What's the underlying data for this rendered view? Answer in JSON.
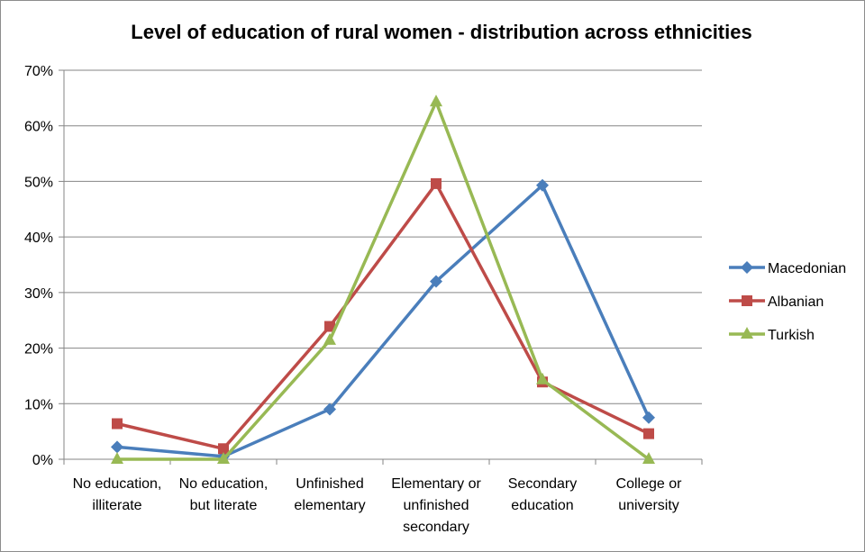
{
  "chart_data": {
    "type": "line",
    "title": "Level of education of rural women - distribution across ethnicities",
    "xlabel": "",
    "ylabel": "",
    "categories": [
      [
        "No education,",
        "illiterate"
      ],
      [
        "No education,",
        "but literate"
      ],
      [
        "Unfinished",
        "elementary"
      ],
      [
        "Elementary or",
        "unfinished",
        "secondary"
      ],
      [
        "Secondary",
        "education"
      ],
      [
        "College or",
        "university"
      ]
    ],
    "ylim": [
      0,
      70
    ],
    "yticks": [
      "0%",
      "10%",
      "20%",
      "30%",
      "40%",
      "50%",
      "60%",
      "70%"
    ],
    "grid": true,
    "legend_position": "right",
    "series": [
      {
        "name": "Macedonian",
        "color": "#4a7ebb",
        "marker": "diamond",
        "values": [
          2.2,
          0.5,
          9.0,
          32.0,
          49.3,
          7.5
        ]
      },
      {
        "name": "Albanian",
        "color": "#be4b48",
        "marker": "square",
        "values": [
          6.4,
          1.9,
          23.9,
          49.6,
          13.9,
          4.6
        ]
      },
      {
        "name": "Turkish",
        "color": "#98b954",
        "marker": "triangle",
        "values": [
          0.0,
          0.0,
          21.4,
          64.3,
          14.3,
          0.0
        ]
      }
    ]
  }
}
